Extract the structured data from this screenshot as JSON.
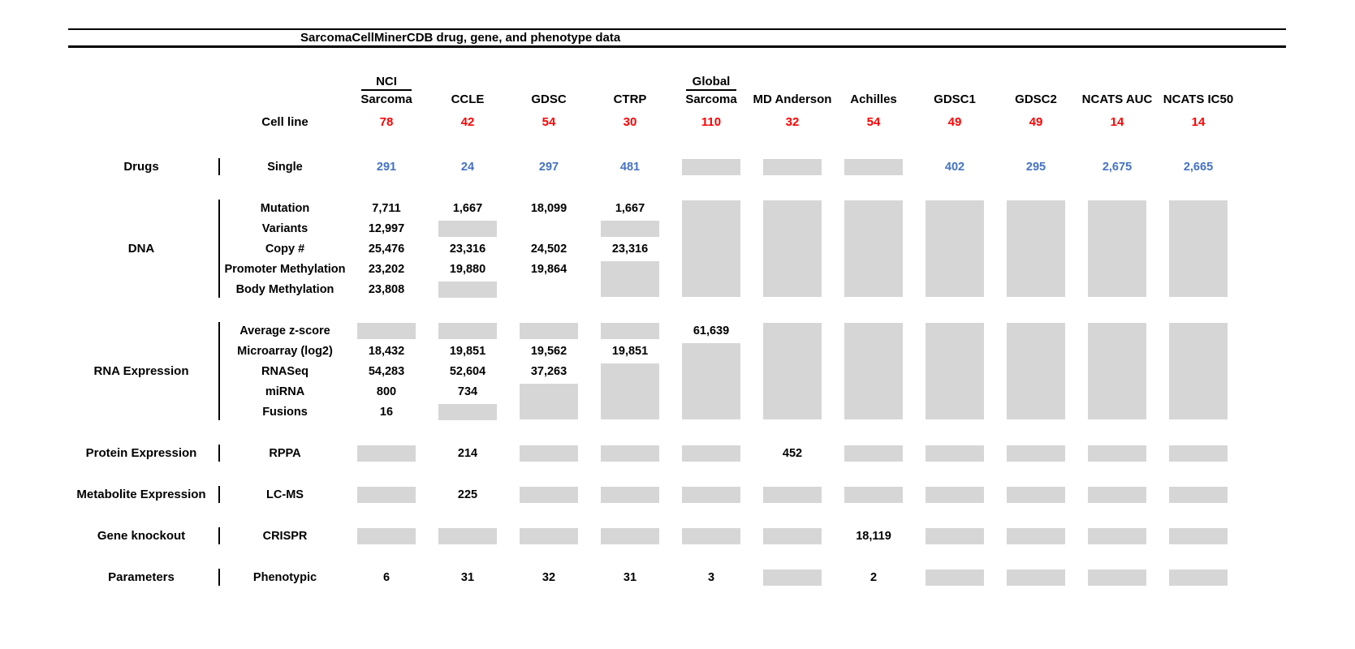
{
  "chart_data": {
    "type": "table",
    "title": "SarcomaCellMinerCDB drug, gene, and phenotype data",
    "colors": {
      "cell_line_red": "#fe0000",
      "drug_count_blue": "#4472c4",
      "no_data_gray": "#d6d6d6"
    },
    "columns": [
      {
        "top": "NCI",
        "label": "Sarcoma"
      },
      {
        "top": "",
        "label": "CCLE"
      },
      {
        "top": "",
        "label": "GDSC"
      },
      {
        "top": "",
        "label": "CTRP"
      },
      {
        "top": "Global",
        "label": "Sarcoma"
      },
      {
        "top": "",
        "label": "MD Anderson"
      },
      {
        "top": "",
        "label": "Achilles"
      },
      {
        "top": "",
        "label": "GDSC1"
      },
      {
        "top": "",
        "label": "GDSC2"
      },
      {
        "top": "",
        "label": "NCATS AUC"
      },
      {
        "top": "",
        "label": "NCATS IC50"
      }
    ],
    "cell_line": {
      "label": "Cell line",
      "color": "red",
      "values": [
        "78",
        "42",
        "54",
        "30",
        "110",
        "32",
        "54",
        "49",
        "49",
        "14",
        "14"
      ]
    },
    "sections": [
      {
        "category": "Drugs",
        "rows": [
          {
            "label": "Single",
            "color": "blue",
            "cells": [
              "291",
              "24",
              "297",
              "481",
              null,
              null,
              null,
              "402",
              "295",
              "2,675",
              "2,665"
            ]
          }
        ]
      },
      {
        "category": "DNA",
        "rows": [
          {
            "label": "Mutation",
            "cells": [
              "7,711",
              "1,667",
              "18,099",
              "1,667",
              null,
              null,
              null,
              null,
              null,
              null,
              null
            ]
          },
          {
            "label": "Variants",
            "cells": [
              "12,997",
              null,
              "",
              null,
              null,
              null,
              null,
              null,
              null,
              null,
              null
            ]
          },
          {
            "label": "Copy #",
            "cells": [
              "25,476",
              "23,316",
              "24,502",
              "23,316",
              null,
              null,
              null,
              null,
              null,
              null,
              null
            ]
          },
          {
            "label": "Promoter Methylation",
            "cells": [
              "23,202",
              "19,880",
              "19,864",
              null,
              null,
              null,
              null,
              null,
              null,
              null,
              null
            ]
          },
          {
            "label": "Body Methylation",
            "cells": [
              "23,808",
              null,
              "",
              null,
              null,
              null,
              null,
              null,
              null,
              null,
              null
            ]
          }
        ]
      },
      {
        "category": "RNA Expression",
        "rows": [
          {
            "label": "Average z-score",
            "cells": [
              null,
              null,
              null,
              null,
              "61,639",
              null,
              null,
              null,
              null,
              null,
              null
            ]
          },
          {
            "label": "Microarray (log2)",
            "cells": [
              "18,432",
              "19,851",
              "19,562",
              "19,851",
              null,
              null,
              null,
              null,
              null,
              null,
              null
            ]
          },
          {
            "label": "RNASeq",
            "cells": [
              "54,283",
              "52,604",
              "37,263",
              null,
              null,
              null,
              null,
              null,
              null,
              null,
              null
            ]
          },
          {
            "label": "miRNA",
            "cells": [
              "800",
              "734",
              null,
              null,
              null,
              null,
              null,
              null,
              null,
              null,
              null
            ]
          },
          {
            "label": "Fusions",
            "cells": [
              "16",
              null,
              null,
              null,
              null,
              null,
              null,
              null,
              null,
              null,
              null
            ]
          }
        ]
      },
      {
        "category": "Protein Expression",
        "rows": [
          {
            "label": "RPPA",
            "cells": [
              null,
              "214",
              null,
              null,
              null,
              "452",
              null,
              null,
              null,
              null,
              null
            ]
          }
        ]
      },
      {
        "category": "Metabolite Expression",
        "rows": [
          {
            "label": "LC-MS",
            "cells": [
              null,
              "225",
              null,
              null,
              null,
              null,
              null,
              null,
              null,
              null,
              null
            ]
          }
        ]
      },
      {
        "category": "Gene knockout",
        "rows": [
          {
            "label": "CRISPR",
            "cells": [
              null,
              null,
              null,
              null,
              null,
              null,
              "18,119",
              null,
              null,
              null,
              null
            ]
          }
        ]
      },
      {
        "category": "Parameters",
        "rows": [
          {
            "label": "Phenotypic",
            "cells": [
              "6",
              "31",
              "32",
              "31",
              "3",
              null,
              "2",
              null,
              null,
              null,
              null
            ]
          }
        ]
      }
    ]
  }
}
